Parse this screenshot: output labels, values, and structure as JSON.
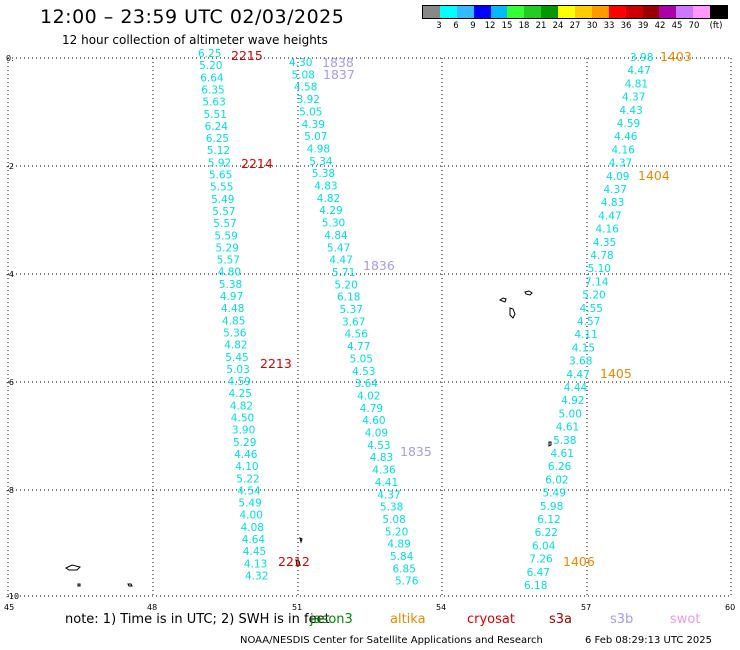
{
  "header": {
    "title": "12:00 – 23:59 UTC 02/03/2025",
    "subtitle": "12 hour collection of altimeter wave heights"
  },
  "legend": {
    "unit": "(ft)",
    "colors": [
      "#888888",
      "#00ffff",
      "#33bbff",
      "#0000ff",
      "#00bbff",
      "#33ff33",
      "#22cc22",
      "#009900",
      "#ffff00",
      "#ffcc00",
      "#ff9900",
      "#ff0000",
      "#cc0000",
      "#990000",
      "#aa00aa",
      "#cc77ff",
      "#ff99ff",
      "#000000"
    ],
    "values": [
      "3",
      "6",
      "9",
      "12",
      "15",
      "18",
      "21",
      "24",
      "27",
      "30",
      "33",
      "36",
      "39",
      "42",
      "45",
      "70"
    ]
  },
  "map": {
    "x_ticks": [
      "45",
      "48",
      "51",
      "54",
      "57",
      "60"
    ],
    "y_ticks": [
      "0.",
      "-2",
      "-4",
      "-6",
      "-8",
      "-10"
    ],
    "tracks": [
      {
        "satellite": "jason3",
        "color": "#00dddd",
        "values": [
          "6.25",
          "5.20",
          "6.64",
          "6.35",
          "5.63",
          "5.51",
          "6.24",
          "6.25",
          "5.12",
          "5.92",
          "5.65",
          "5.55",
          "5.49",
          "5.57",
          "5.57",
          "5.59",
          "5.29",
          "5.57",
          "4.80",
          "5.38",
          "4.97",
          "4.48",
          "4.85",
          "5.36",
          "4.82",
          "5.45",
          "5.03",
          "4.59",
          "4.25",
          "4.82",
          "4.50",
          "3.90",
          "5.29",
          "4.46",
          "4.10",
          "5.22",
          "4.54",
          "5.49",
          "4.00",
          "4.08",
          "4.64",
          "4.45",
          "4.13",
          "4.32"
        ],
        "time_labels": [
          {
            "text": "2215",
            "color": "#dd0000"
          },
          {
            "text": "2214",
            "color": "#dd0000"
          },
          {
            "text": "2213",
            "color": "#dd0000"
          },
          {
            "text": "2212",
            "color": "#dd0000"
          }
        ]
      },
      {
        "satellite": "s3b",
        "color": "#00dddd",
        "values": [
          "4.30",
          "5.08",
          "4.58",
          "3.92",
          "5.05",
          "4.39",
          "5.07",
          "4.98",
          "5.34",
          "5.38",
          "4.83",
          "4.82",
          "4.29",
          "5.30",
          "4.84",
          "5.47",
          "4.47",
          "5.71",
          "5.20",
          "6.18",
          "5.37",
          "3.67",
          "4.56",
          "4.77",
          "5.05",
          "4.53",
          "3.64",
          "4.02",
          "4.79",
          "4.60",
          "4.09",
          "4.53",
          "4.83",
          "4.36",
          "4.41",
          "4.37",
          "5.38",
          "5.08",
          "5.20",
          "4.89",
          "5.84",
          "6.85",
          "5.76"
        ],
        "time_labels": [
          {
            "text": "1838",
            "color": "#aa99ee"
          },
          {
            "text": "1837",
            "color": "#aa99ee"
          },
          {
            "text": "1836",
            "color": "#aa99ee"
          },
          {
            "text": "1835",
            "color": "#aa99ee"
          }
        ]
      },
      {
        "satellite": "altika",
        "color": "#00dddd",
        "values": [
          "3.98",
          "4.47",
          "4.81",
          "4.37",
          "4.43",
          "4.59",
          "4.46",
          "4.16",
          "4.37",
          "4.09",
          "4.37",
          "4.83",
          "4.47",
          "4.16",
          "4.35",
          "4.78",
          "5.10",
          "7.14",
          "5.20",
          "4.55",
          "4.57",
          "4.11",
          "4.15",
          "3.68",
          "4.47",
          "4.44",
          "4.92",
          "5.00",
          "4.61",
          "5.38",
          "4.61",
          "6.26",
          "6.02",
          "5.49",
          "5.98",
          "6.12",
          "6.22",
          "6.04",
          "7.26",
          "6.47",
          "6.18"
        ],
        "time_labels": [
          {
            "text": "1403",
            "color": "#ee8800"
          },
          {
            "text": "1404",
            "color": "#ee8800"
          },
          {
            "text": "1405",
            "color": "#ee8800"
          },
          {
            "text": "1406",
            "color": "#ee8800"
          }
        ]
      }
    ]
  },
  "note": {
    "text": "note:  1) Time is in UTC; 2) SWH is in feet",
    "satellites": [
      {
        "name": "jason3",
        "color": "#008800"
      },
      {
        "name": "altika",
        "color": "#ee8800"
      },
      {
        "name": "cryosat",
        "color": "#dd0000"
      },
      {
        "name": "s3a",
        "color": "#990000"
      },
      {
        "name": "s3b",
        "color": "#aa99ee"
      },
      {
        "name": "swot",
        "color": "#ee99dd"
      }
    ]
  },
  "footer": {
    "credit": "NOAA/NESDIS Center for Satellite Applications and Research",
    "timestamp": "6 Feb 08:29:13 UTC 2025"
  }
}
